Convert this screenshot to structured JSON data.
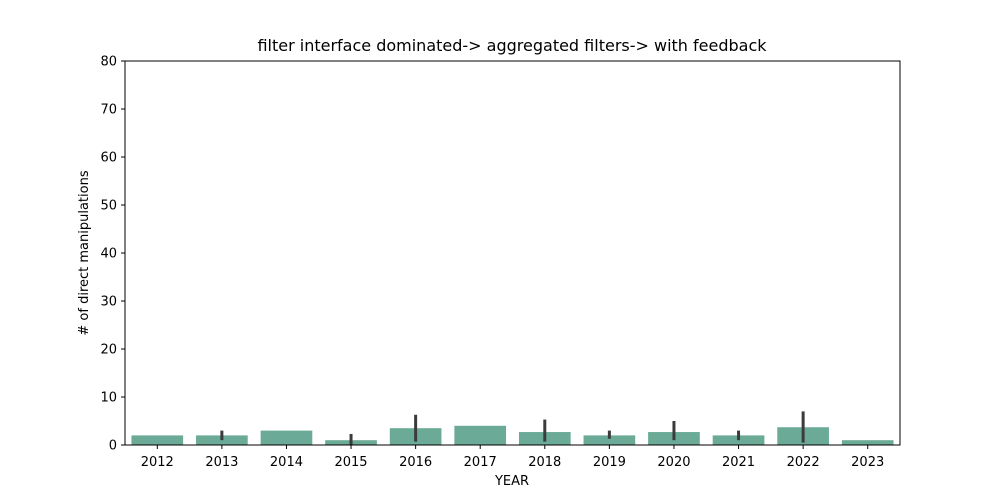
{
  "chart_data": {
    "type": "bar",
    "title": "filter interface dominated-> aggregated filters-> with feedback",
    "xlabel": "YEAR",
    "ylabel": "# of direct manipulations",
    "categories": [
      "2012",
      "2013",
      "2014",
      "2015",
      "2016",
      "2017",
      "2018",
      "2019",
      "2020",
      "2021",
      "2022",
      "2023"
    ],
    "values": [
      2,
      2,
      3,
      1,
      3.5,
      4,
      2.7,
      2,
      2.7,
      2,
      3.7,
      1
    ],
    "error_low": [
      null,
      1.0,
      null,
      0.0,
      0.7,
      null,
      0.7,
      1.3,
      1.0,
      1.0,
      0.5,
      null
    ],
    "error_high": [
      null,
      3.0,
      null,
      2.3,
      6.3,
      null,
      5.3,
      3.0,
      5.0,
      3.0,
      7.0,
      null
    ],
    "ylim": [
      0,
      80
    ],
    "yticks": [
      0,
      10,
      20,
      30,
      40,
      50,
      60,
      70,
      80
    ],
    "grid": false,
    "colors": {
      "bar": "#6aaa96",
      "error_bar": "#3b3b3b",
      "axis": "#000000"
    }
  }
}
